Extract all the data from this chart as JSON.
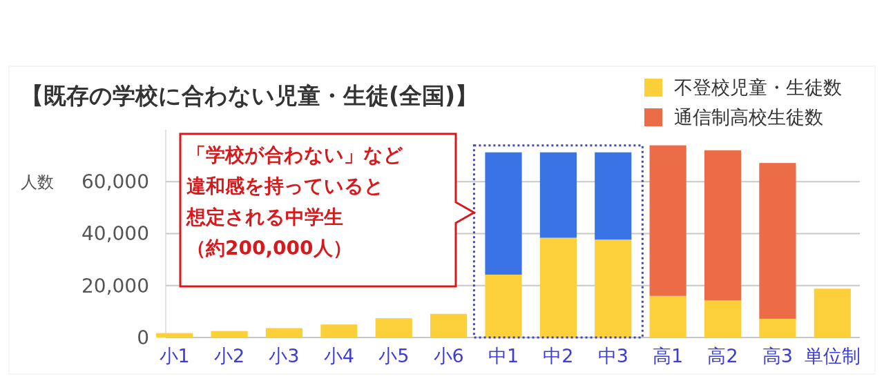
{
  "chart_data": {
    "type": "bar",
    "title": "【既存の学校に合わない児童・生徒(全国)】",
    "ylabel": "人数",
    "stacked": true,
    "legend": "top right",
    "grid": "y",
    "categories": [
      "小1",
      "小2",
      "小3",
      "小4",
      "小5",
      "小6",
      "中1",
      "中2",
      "中3",
      "高1",
      "高2",
      "高3",
      "単位制"
    ],
    "series": [
      {
        "name": "不登校児童・生徒数",
        "color": "#fbd03b",
        "values": [
          1700,
          2500,
          3600,
          5000,
          7400,
          9100,
          24200,
          38400,
          37700,
          16000,
          14300,
          7200,
          18800
        ]
      },
      {
        "color": "#3a73e6",
        "values": [
          null,
          null,
          null,
          null,
          null,
          null,
          47100,
          32900,
          33600,
          null,
          null,
          null,
          null
        ]
      },
      {
        "name": "通信制高校生徒数",
        "color": "#ec6c48",
        "values": [
          null,
          null,
          null,
          null,
          null,
          null,
          null,
          null,
          null,
          58000,
          57800,
          60000,
          null
        ]
      }
    ],
    "ylim": [
      0,
      80000
    ],
    "yticks": [
      0,
      {
        "value": 20000,
        "label": "20,000"
      },
      {
        "value": 40000,
        "label": "40,000"
      },
      {
        "value": 60000,
        "label": "60,000"
      }
    ],
    "annotations": [
      "「学校が合わない」など",
      "違和感を持っていると",
      "想定される中学生",
      "（約200,000人）"
    ]
  }
}
